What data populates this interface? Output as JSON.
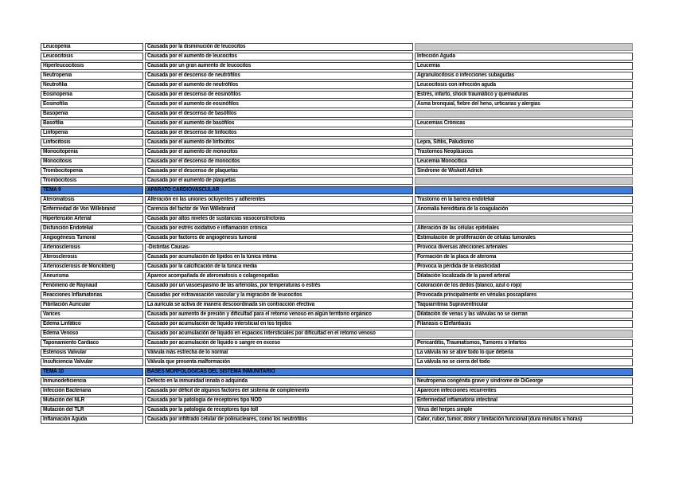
{
  "document": {
    "kind": "medical-terminology-table",
    "language": "es",
    "colors": {
      "section_row_bg": "#3b7de0",
      "empty_cell_bg": "#c9c9c9",
      "cell_border": "#3f3f3f",
      "text": "#000000",
      "page_bg": "#ffffff"
    },
    "rows": [
      {
        "type": "data",
        "term": "Leucopenia",
        "cause": "Causada por la disminución de leucocitos",
        "assoc": ""
      },
      {
        "type": "data",
        "term": "Leucocitosis",
        "cause": "Causada por el aumento de leucocitos",
        "assoc": "Infección Aguda"
      },
      {
        "type": "data",
        "term": "Hiperleucocitosis",
        "cause": "Causada por un gran aumento de leucocitos",
        "assoc": "Leucemia"
      },
      {
        "type": "data",
        "term": "Neutropenia",
        "cause": "Causada por el descenso de neutrófilos",
        "assoc": "Agranulocitosis o infecciones subagudas"
      },
      {
        "type": "data",
        "term": "Neutrofilia",
        "cause": "Causada por el aumento de neutrófilos",
        "assoc": "Leucocitosis con infección aguda"
      },
      {
        "type": "data",
        "term": "Eosinopenia",
        "cause": "Causada por el descenso de eosinófilos",
        "assoc": "Estrés, infarto, shock traumático y quemaduras"
      },
      {
        "type": "data",
        "term": "Eosinofilia",
        "cause": "Causada por el aumento de eosinófilos",
        "assoc": "Asma bronquial, fiebre del heno, urticarias y alergias"
      },
      {
        "type": "data",
        "term": "Basopenia",
        "cause": "Causada por el descenso de basófilos",
        "assoc": ""
      },
      {
        "type": "data",
        "term": "Basofilia",
        "cause": "Causada por el aumento de basófilos",
        "assoc": "Leucemias Crónicas"
      },
      {
        "type": "data",
        "term": "Linfopenia",
        "cause": "Causada por el descenso de linfocitos",
        "assoc": ""
      },
      {
        "type": "data",
        "term": "Linfocitosis",
        "cause": "Causada por el aumento de linfocitos",
        "assoc": "Lepra, Sífilis, Paludismo"
      },
      {
        "type": "data",
        "term": "Monocitopenia",
        "cause": "Causada por el aumento de monocitos",
        "assoc": "Trastornos Neoplásicos"
      },
      {
        "type": "data",
        "term": "Monocitosis",
        "cause": "Causada por el descenso de monocitos",
        "assoc": "Leucemia Monocítica"
      },
      {
        "type": "data",
        "term": "Trombocitopenia",
        "cause": "Causada por el descenso de plaquetas",
        "assoc": "Síndrome de Wiskott Adrich"
      },
      {
        "type": "data",
        "term": "Trombocitosis",
        "cause": "Causada por el aumento de plaquetas",
        "assoc": ""
      },
      {
        "type": "section",
        "term": "TEMA 9",
        "cause": "APARATO CARDIOVASCULAR",
        "assoc": ""
      },
      {
        "type": "data",
        "term": "Ateromatosis",
        "cause": "Alteración en las uniones ocluyentes y adherentes",
        "assoc": "Trastorno en la barrera endotelial"
      },
      {
        "type": "data",
        "term": "Enfermedad de Von Willebrand",
        "cause": "Carencia del factor de Von Willebrand",
        "assoc": "Anomalía hereditaria de la coagulación"
      },
      {
        "type": "data",
        "term": "Hipertensión Arterial",
        "cause": "Causada por altos niveles de sustancias vasoconstrictoras",
        "assoc": ""
      },
      {
        "type": "data",
        "term": "Disfunción Endotelial",
        "cause": "Causada por estrés oxidativo e inflamación crónica",
        "assoc": "Alteración de las células epiteliales"
      },
      {
        "type": "data",
        "term": "Angiogénesis Tumoral",
        "cause": "Causada por factores de angiogénesis tumoral",
        "assoc": "Estimulación de proliferación de células tumorales"
      },
      {
        "type": "data",
        "term": "Arteriosclerosis",
        "cause": "-Distintas Causas-",
        "assoc": "Provoca diversas afecciones arteriales"
      },
      {
        "type": "data",
        "term": "Aterosclerosis",
        "cause": "Causada por acumulación de lípidos en la túnica íntima",
        "assoc": "Formación de la placa de ateroma"
      },
      {
        "type": "data",
        "term": "Arteriosclerosis de Monckberg",
        "cause": "Causada por la calcificación de la túnica media",
        "assoc": "Provoca la pérdida de la elasticidad"
      },
      {
        "type": "data",
        "term": "Aneurisma",
        "cause": "Aparece acompañada de ateromatosis o colagenopatías",
        "assoc": "Dilatación localizada de la pared arterial"
      },
      {
        "type": "data",
        "term": "Fenómeno de Raynaud",
        "cause": "Causado por un vasoespasmo de las arteriolas, por temperaturas o estrés",
        "assoc": "Coloración de los dedos (blanco, azul o rojo)"
      },
      {
        "type": "data",
        "term": "Reacciones Inflamatorias",
        "cause": "Causadas por extravasación vascular y la migración de leucocitos",
        "assoc": "Provocada principalmente en vénulas poscapilares"
      },
      {
        "type": "data",
        "term": "Fibrilación Auricular",
        "cause": "La aurícula se activa de manera descoordinada sin contracción efectiva",
        "assoc": "Taquiarritmia Supraventricular"
      },
      {
        "type": "data",
        "term": "Varices",
        "cause": "Causada por aumento de presión y dificultad para el retorno venoso en algún territorio orgánico",
        "assoc": "Dilatación de venas y las válvulas no se cierran"
      },
      {
        "type": "data",
        "term": "Edema Linfático",
        "cause": "Causado por acumulación de líquido intersticial en los tejidos",
        "assoc": "Filariasis o Elefantiasis"
      },
      {
        "type": "data",
        "term": "Edema Venoso",
        "cause": "Causado por acumulación de líquido en espacios intersticiales por dificultad en el retorno venoso",
        "assoc": ""
      },
      {
        "type": "data",
        "term": "Taponamiento Cardiaco",
        "cause": "Causado por acumulación de líquido o sangre en exceso",
        "assoc": "Pericarditis, Traumatismos, Tumores o Infartos"
      },
      {
        "type": "data",
        "term": "Estenosis Valvular",
        "cause": "Válvula más estrecha de lo normal",
        "assoc": "La válvula no se abre todo lo que debería"
      },
      {
        "type": "data",
        "term": "Insuficiencia Valvular",
        "cause": "Válvula que presenta malformación",
        "assoc": "La válvula no se cierra del todo"
      },
      {
        "type": "section",
        "term": "TEMA 10",
        "cause": "BASES MORFOLÓGICAS DEL SISTEMA INMUNITARIO",
        "assoc": ""
      },
      {
        "type": "data",
        "term": "Inmunodeficiencia",
        "cause": "Defecto en la inmunidad innata o adquirida",
        "assoc": "Neutropenia congénita grave y síndrome de DiGeorge"
      },
      {
        "type": "data",
        "term": "Infección Bacteriana",
        "cause": "Causada por déficit de algunos factores del sistema de complemento",
        "assoc": "Aparecen infecciones recurrentes"
      },
      {
        "type": "data",
        "term": "Mutación del NLR",
        "cause": "Causada por la patología de receptores tipo NOD",
        "assoc": "Enfermedad inflamatoria intestinal"
      },
      {
        "type": "data",
        "term": "Mutación del TLR",
        "cause": "Causada por la patología de receptores tipo toll",
        "assoc": "Virus del herpes simple"
      },
      {
        "type": "data",
        "term": "Inflamación Aguda",
        "cause": "Causada por infiltrado celular de polinucleares, como los neutrófilos",
        "assoc": "Calor, rubor, tumor, dolor y limitación funcional (dura minutos u horas)"
      }
    ]
  }
}
